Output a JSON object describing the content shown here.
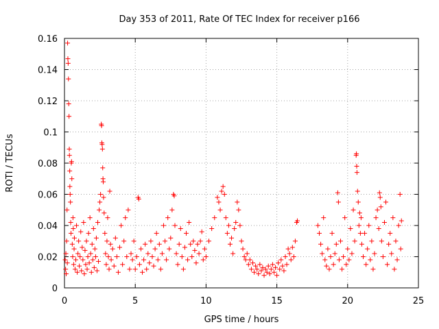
{
  "chart_data": {
    "type": "scatter",
    "title": "Day 353 of 2011, Rate Of TEC Index for receiver p166",
    "xlabel": "GPS time / hours",
    "ylabel": "ROTI / TECUs",
    "xlim": [
      0,
      25
    ],
    "ylim": [
      0,
      0.16
    ],
    "xticks": [
      0,
      5,
      10,
      15,
      20,
      25
    ],
    "yticks": [
      0,
      0.02,
      0.04,
      0.06,
      0.08,
      0.1,
      0.12,
      0.14,
      0.16
    ],
    "xtick_labels": [
      "0",
      "5",
      "10",
      "15",
      "20",
      "25"
    ],
    "ytick_labels": [
      "0",
      "0.02",
      "0.04",
      "0.06",
      "0.08",
      "0.1",
      "0.12",
      "0.14",
      "0.16"
    ],
    "grid": true,
    "marker": "+",
    "color": "#ff0000",
    "series": [
      {
        "name": "ROTI",
        "points": [
          [
            0.05,
            0.018
          ],
          [
            0.08,
            0.012
          ],
          [
            0.1,
            0.022
          ],
          [
            0.12,
            0.009
          ],
          [
            0.15,
            0.03
          ],
          [
            0.18,
            0.05
          ],
          [
            0.2,
            0.016
          ],
          [
            0.22,
            0.157
          ],
          [
            0.24,
            0.147
          ],
          [
            0.26,
            0.144
          ],
          [
            0.28,
            0.134
          ],
          [
            0.3,
            0.118
          ],
          [
            0.32,
            0.11
          ],
          [
            0.34,
            0.089
          ],
          [
            0.35,
            0.085
          ],
          [
            0.37,
            0.075
          ],
          [
            0.38,
            0.065
          ],
          [
            0.4,
            0.06
          ],
          [
            0.42,
            0.055
          ],
          [
            0.44,
            0.042
          ],
          [
            0.46,
            0.035
          ],
          [
            0.48,
            0.08
          ],
          [
            0.5,
            0.081
          ],
          [
            0.52,
            0.07
          ],
          [
            0.55,
            0.028
          ],
          [
            0.58,
            0.02
          ],
          [
            0.6,
            0.045
          ],
          [
            0.62,
            0.038
          ],
          [
            0.65,
            0.015
          ],
          [
            0.68,
            0.025
          ],
          [
            0.7,
            0.032
          ],
          [
            0.75,
            0.012
          ],
          [
            0.8,
            0.018
          ],
          [
            0.85,
            0.04
          ],
          [
            0.9,
            0.01
          ],
          [
            0.95,
            0.022
          ],
          [
            1.0,
            0.03
          ],
          [
            1.05,
            0.014
          ],
          [
            1.1,
            0.02
          ],
          [
            1.15,
            0.036
          ],
          [
            1.2,
            0.011
          ],
          [
            1.25,
            0.026
          ],
          [
            1.3,
            0.018
          ],
          [
            1.35,
            0.042
          ],
          [
            1.4,
            0.009
          ],
          [
            1.45,
            0.024
          ],
          [
            1.5,
            0.015
          ],
          [
            1.55,
            0.03
          ],
          [
            1.6,
            0.012
          ],
          [
            1.65,
            0.02
          ],
          [
            1.7,
            0.035
          ],
          [
            1.75,
            0.016
          ],
          [
            1.8,
            0.045
          ],
          [
            1.85,
            0.022
          ],
          [
            1.9,
            0.01
          ],
          [
            1.95,
            0.028
          ],
          [
            2.0,
            0.018
          ],
          [
            2.05,
            0.038
          ],
          [
            2.1,
            0.013
          ],
          [
            2.15,
            0.025
          ],
          [
            2.2,
            0.02
          ],
          [
            2.25,
            0.032
          ],
          [
            2.3,
            0.011
          ],
          [
            2.35,
            0.042
          ],
          [
            2.4,
            0.017
          ],
          [
            2.45,
            0.05
          ],
          [
            2.5,
            0.055
          ],
          [
            2.55,
            0.06
          ],
          [
            2.6,
            0.105
          ],
          [
            2.62,
            0.104
          ],
          [
            2.64,
            0.093
          ],
          [
            2.66,
            0.092
          ],
          [
            2.68,
            0.089
          ],
          [
            2.7,
            0.077
          ],
          [
            2.72,
            0.07
          ],
          [
            2.74,
            0.068
          ],
          [
            2.76,
            0.058
          ],
          [
            2.8,
            0.048
          ],
          [
            2.85,
            0.035
          ],
          [
            2.9,
            0.022
          ],
          [
            2.95,
            0.015
          ],
          [
            3.0,
            0.03
          ],
          [
            3.05,
            0.045
          ],
          [
            3.1,
            0.02
          ],
          [
            3.15,
            0.012
          ],
          [
            3.2,
            0.062
          ],
          [
            3.25,
            0.028
          ],
          [
            3.3,
            0.018
          ],
          [
            3.4,
            0.025
          ],
          [
            3.5,
            0.014
          ],
          [
            3.6,
            0.032
          ],
          [
            3.7,
            0.02
          ],
          [
            3.8,
            0.01
          ],
          [
            3.9,
            0.026
          ],
          [
            4.0,
            0.04
          ],
          [
            4.1,
            0.015
          ],
          [
            4.2,
            0.03
          ],
          [
            4.3,
            0.045
          ],
          [
            4.4,
            0.02
          ],
          [
            4.5,
            0.05
          ],
          [
            4.6,
            0.012
          ],
          [
            4.7,
            0.022
          ],
          [
            4.8,
            0.018
          ],
          [
            4.9,
            0.03
          ],
          [
            5.0,
            0.012
          ],
          [
            5.1,
            0.02
          ],
          [
            5.2,
            0.058
          ],
          [
            5.25,
            0.057
          ],
          [
            5.3,
            0.015
          ],
          [
            5.4,
            0.025
          ],
          [
            5.5,
            0.01
          ],
          [
            5.6,
            0.018
          ],
          [
            5.7,
            0.028
          ],
          [
            5.8,
            0.012
          ],
          [
            5.9,
            0.022
          ],
          [
            6.0,
            0.016
          ],
          [
            6.1,
            0.03
          ],
          [
            6.2,
            0.02
          ],
          [
            6.3,
            0.014
          ],
          [
            6.4,
            0.025
          ],
          [
            6.5,
            0.035
          ],
          [
            6.6,
            0.018
          ],
          [
            6.7,
            0.028
          ],
          [
            6.8,
            0.012
          ],
          [
            6.9,
            0.022
          ],
          [
            7.0,
            0.04
          ],
          [
            7.1,
            0.03
          ],
          [
            7.2,
            0.018
          ],
          [
            7.3,
            0.045
          ],
          [
            7.4,
            0.025
          ],
          [
            7.5,
            0.032
          ],
          [
            7.6,
            0.05
          ],
          [
            7.7,
            0.06
          ],
          [
            7.75,
            0.059
          ],
          [
            7.8,
            0.04
          ],
          [
            7.9,
            0.022
          ],
          [
            8.0,
            0.015
          ],
          [
            8.1,
            0.028
          ],
          [
            8.2,
            0.038
          ],
          [
            8.3,
            0.02
          ],
          [
            8.4,
            0.012
          ],
          [
            8.5,
            0.026
          ],
          [
            8.6,
            0.035
          ],
          [
            8.7,
            0.018
          ],
          [
            8.8,
            0.042
          ],
          [
            8.9,
            0.028
          ],
          [
            9.0,
            0.02
          ],
          [
            9.1,
            0.03
          ],
          [
            9.2,
            0.024
          ],
          [
            9.3,
            0.016
          ],
          [
            9.4,
            0.028
          ],
          [
            9.5,
            0.022
          ],
          [
            9.6,
            0.03
          ],
          [
            9.7,
            0.036
          ],
          [
            9.8,
            0.018
          ],
          [
            9.9,
            0.025
          ],
          [
            10.0,
            0.02
          ],
          [
            10.2,
            0.03
          ],
          [
            10.4,
            0.038
          ],
          [
            10.6,
            0.045
          ],
          [
            10.8,
            0.058
          ],
          [
            10.9,
            0.055
          ],
          [
            11.0,
            0.05
          ],
          [
            11.1,
            0.062
          ],
          [
            11.2,
            0.065
          ],
          [
            11.3,
            0.06
          ],
          [
            11.4,
            0.045
          ],
          [
            11.5,
            0.035
          ],
          [
            11.6,
            0.04
          ],
          [
            11.7,
            0.028
          ],
          [
            11.8,
            0.032
          ],
          [
            11.9,
            0.022
          ],
          [
            12.0,
            0.038
          ],
          [
            12.1,
            0.042
          ],
          [
            12.2,
            0.055
          ],
          [
            12.3,
            0.05
          ],
          [
            12.4,
            0.04
          ],
          [
            12.5,
            0.03
          ],
          [
            12.6,
            0.025
          ],
          [
            12.7,
            0.02
          ],
          [
            12.8,
            0.018
          ],
          [
            12.9,
            0.022
          ],
          [
            13.0,
            0.015
          ],
          [
            13.1,
            0.018
          ],
          [
            13.2,
            0.012
          ],
          [
            13.3,
            0.016
          ],
          [
            13.4,
            0.01
          ],
          [
            13.5,
            0.014
          ],
          [
            13.6,
            0.012
          ],
          [
            13.7,
            0.009
          ],
          [
            13.8,
            0.015
          ],
          [
            13.9,
            0.011
          ],
          [
            14.0,
            0.013
          ],
          [
            14.1,
            0.008
          ],
          [
            14.2,
            0.012
          ],
          [
            14.3,
            0.01
          ],
          [
            14.4,
            0.014
          ],
          [
            14.5,
            0.009
          ],
          [
            14.6,
            0.012
          ],
          [
            14.7,
            0.015
          ],
          [
            14.8,
            0.01
          ],
          [
            14.9,
            0.013
          ],
          [
            15.0,
            0.008
          ],
          [
            15.1,
            0.016
          ],
          [
            15.2,
            0.012
          ],
          [
            15.3,
            0.018
          ],
          [
            15.4,
            0.014
          ],
          [
            15.5,
            0.011
          ],
          [
            15.6,
            0.02
          ],
          [
            15.7,
            0.015
          ],
          [
            15.8,
            0.025
          ],
          [
            15.9,
            0.022
          ],
          [
            16.0,
            0.018
          ],
          [
            16.1,
            0.026
          ],
          [
            16.2,
            0.02
          ],
          [
            16.3,
            0.03
          ],
          [
            16.4,
            0.042
          ],
          [
            16.45,
            0.043
          ],
          [
            17.9,
            0.04
          ],
          [
            18.0,
            0.035
          ],
          [
            18.1,
            0.028
          ],
          [
            18.2,
            0.022
          ],
          [
            18.3,
            0.045
          ],
          [
            18.4,
            0.018
          ],
          [
            18.5,
            0.014
          ],
          [
            18.6,
            0.025
          ],
          [
            18.7,
            0.012
          ],
          [
            18.8,
            0.02
          ],
          [
            18.9,
            0.035
          ],
          [
            19.0,
            0.015
          ],
          [
            19.1,
            0.022
          ],
          [
            19.2,
            0.028
          ],
          [
            19.3,
            0.061
          ],
          [
            19.35,
            0.055
          ],
          [
            19.4,
            0.018
          ],
          [
            19.5,
            0.03
          ],
          [
            19.6,
            0.012
          ],
          [
            19.7,
            0.02
          ],
          [
            19.8,
            0.045
          ],
          [
            19.9,
            0.015
          ],
          [
            20.0,
            0.025
          ],
          [
            20.1,
            0.018
          ],
          [
            20.2,
            0.038
          ],
          [
            20.3,
            0.022
          ],
          [
            20.4,
            0.05
          ],
          [
            20.5,
            0.03
          ],
          [
            20.6,
            0.085
          ],
          [
            20.62,
            0.086
          ],
          [
            20.64,
            0.078
          ],
          [
            20.66,
            0.074
          ],
          [
            20.7,
            0.062
          ],
          [
            20.75,
            0.055
          ],
          [
            20.8,
            0.04
          ],
          [
            20.85,
            0.048
          ],
          [
            20.9,
            0.035
          ],
          [
            20.95,
            0.045
          ],
          [
            21.0,
            0.028
          ],
          [
            21.1,
            0.02
          ],
          [
            21.2,
            0.035
          ],
          [
            21.3,
            0.015
          ],
          [
            21.4,
            0.025
          ],
          [
            21.5,
            0.04
          ],
          [
            21.6,
            0.018
          ],
          [
            21.7,
            0.03
          ],
          [
            21.8,
            0.012
          ],
          [
            21.9,
            0.022
          ],
          [
            22.0,
            0.045
          ],
          [
            22.1,
            0.05
          ],
          [
            22.2,
            0.038
          ],
          [
            22.25,
            0.061
          ],
          [
            22.3,
            0.058
          ],
          [
            22.35,
            0.052
          ],
          [
            22.4,
            0.03
          ],
          [
            22.5,
            0.02
          ],
          [
            22.6,
            0.042
          ],
          [
            22.7,
            0.055
          ],
          [
            22.8,
            0.015
          ],
          [
            22.9,
            0.028
          ],
          [
            23.0,
            0.035
          ],
          [
            23.1,
            0.022
          ],
          [
            23.2,
            0.045
          ],
          [
            23.3,
            0.012
          ],
          [
            23.4,
            0.03
          ],
          [
            23.5,
            0.018
          ],
          [
            23.6,
            0.04
          ],
          [
            23.7,
            0.06
          ],
          [
            23.75,
            0.025
          ],
          [
            23.8,
            0.043
          ]
        ]
      }
    ]
  }
}
